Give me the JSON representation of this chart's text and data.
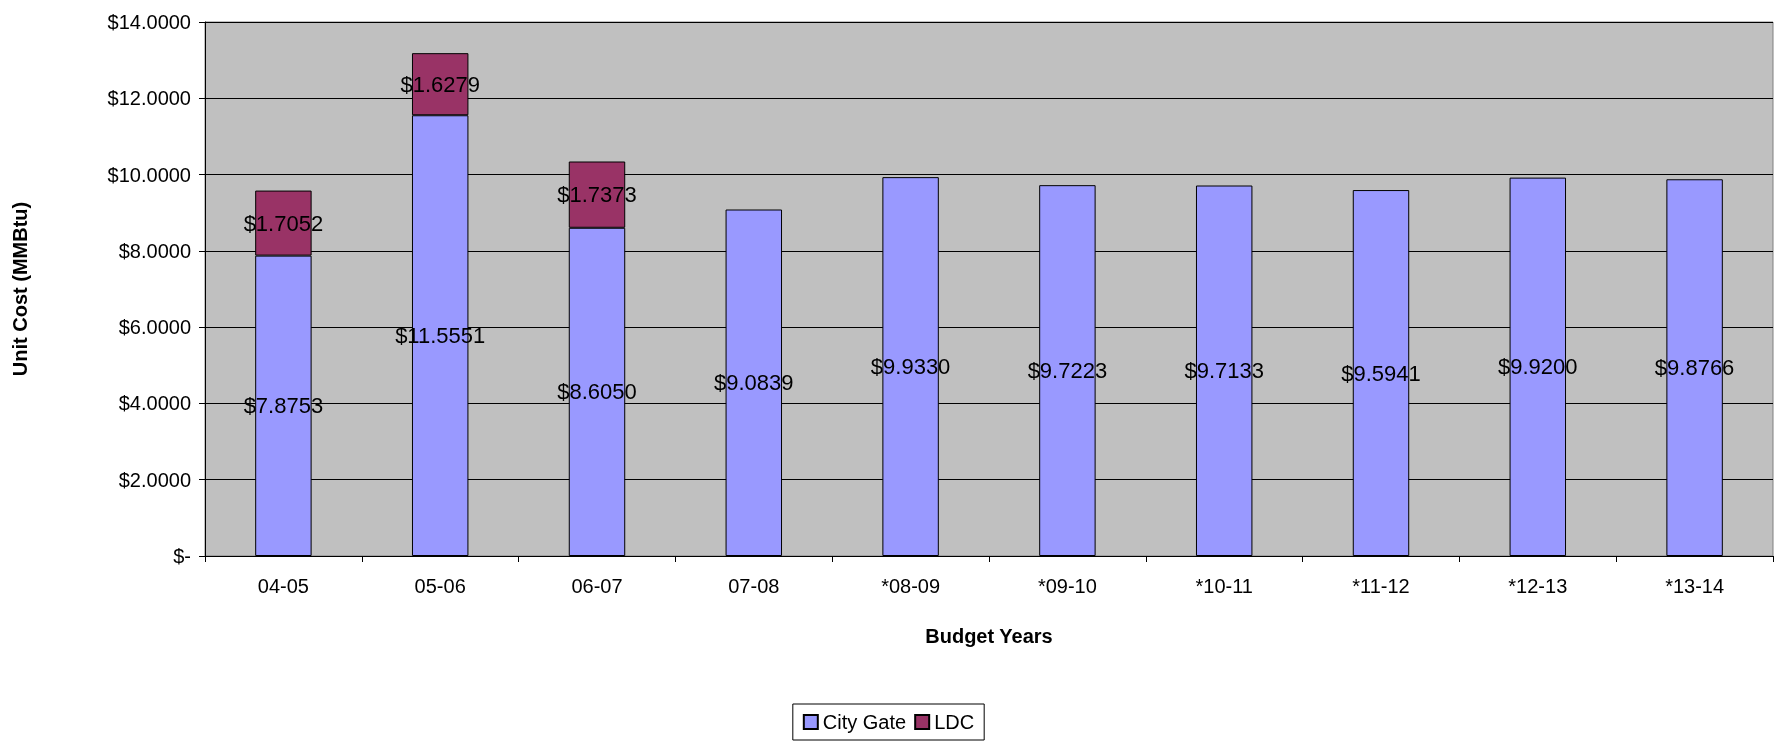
{
  "chart_data": {
    "type": "bar",
    "stacked": true,
    "xlabel": "Budget Years",
    "ylabel": "Unit Cost (MMBtu)",
    "categories": [
      "04-05",
      "05-06",
      "06-07",
      "07-08",
      "*08-09",
      "*09-10",
      "*10-11",
      "*11-12",
      "*12-13",
      "*13-14"
    ],
    "series": [
      {
        "name": "City Gate",
        "color": "#9999ff",
        "values": [
          7.8753,
          11.5551,
          8.605,
          9.0839,
          9.933,
          9.7223,
          9.7133,
          9.5941,
          9.92,
          9.8766
        ],
        "value_labels": [
          "$7.8753",
          "$11.5551",
          "$8.6050",
          "$9.0839",
          "$9.9330",
          "$9.7223",
          "$9.7133",
          "$9.5941",
          "$9.9200",
          "$9.8766"
        ]
      },
      {
        "name": "LDC",
        "color": "#993366",
        "values": [
          1.7052,
          1.6279,
          1.7373,
          null,
          null,
          null,
          null,
          null,
          null,
          null
        ],
        "value_labels": [
          "$1.7052",
          "$1.6279",
          "$1.7373",
          null,
          null,
          null,
          null,
          null,
          null,
          null
        ]
      }
    ],
    "ylim": [
      0,
      14
    ],
    "yticks": [
      {
        "value": 0,
        "label": "$-"
      },
      {
        "value": 2,
        "label": "$2.0000"
      },
      {
        "value": 4,
        "label": "$4.0000"
      },
      {
        "value": 6,
        "label": "$6.0000"
      },
      {
        "value": 8,
        "label": "$8.0000"
      },
      {
        "value": 10,
        "label": "$10.0000"
      },
      {
        "value": 12,
        "label": "$12.0000"
      },
      {
        "value": 14,
        "label": "$14.0000"
      }
    ],
    "grid": "y",
    "legend": "bottom"
  }
}
